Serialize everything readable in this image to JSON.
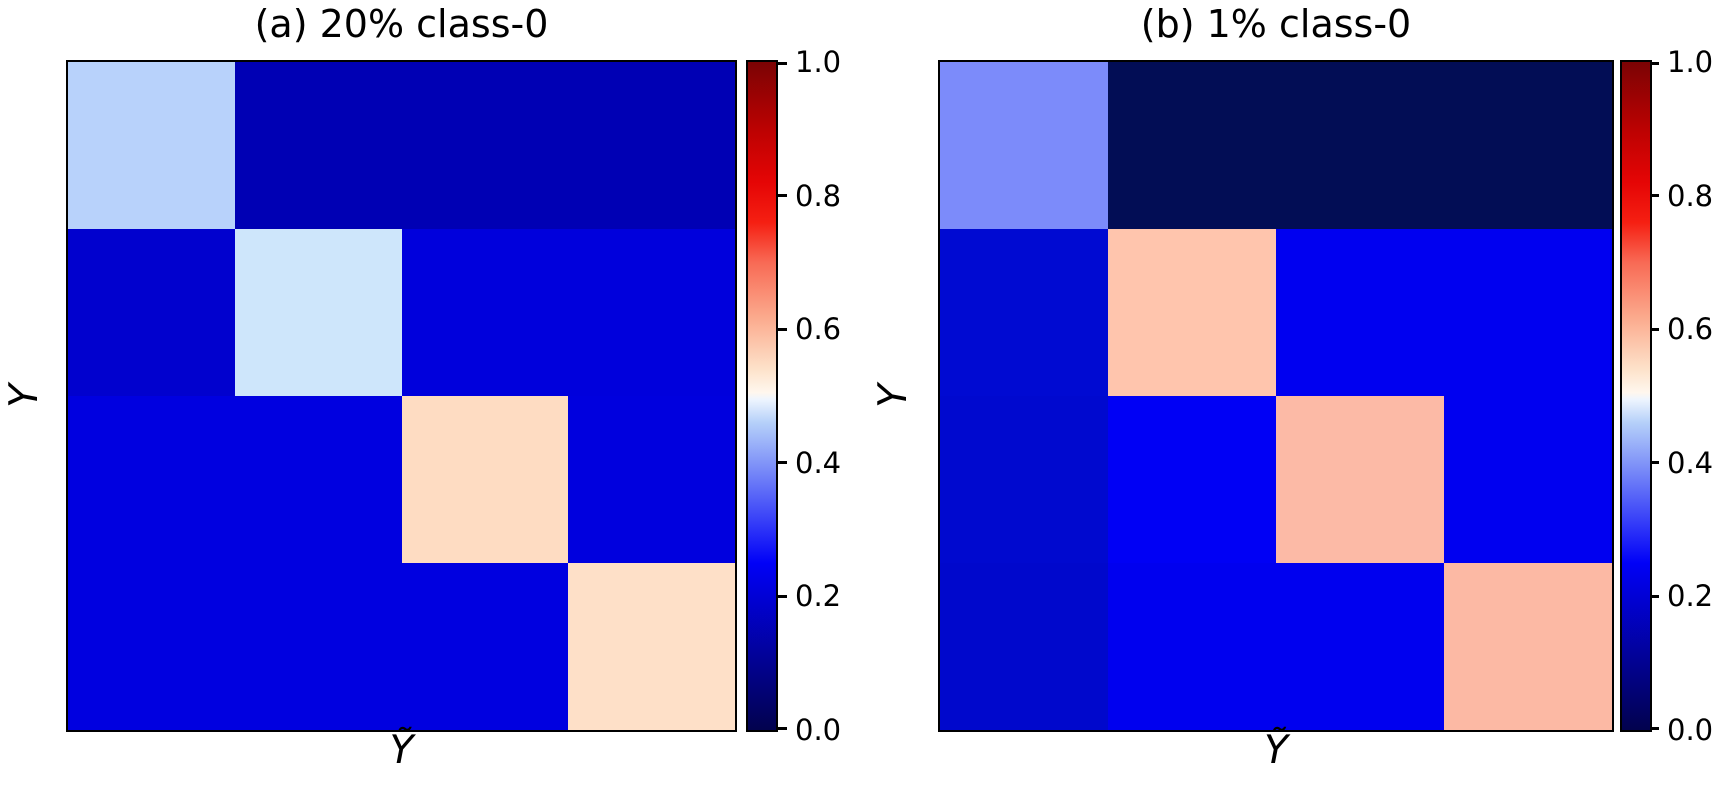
{
  "figure": {
    "background": "#ffffff"
  },
  "chart_data": [
    {
      "type": "heatmap",
      "panel": "left",
      "title": "(a) 20% class-0",
      "xlabel": "Ỹ",
      "ylabel": "Y",
      "n_rows": 4,
      "n_cols": 4,
      "vmin": 0.0,
      "vmax": 1.0,
      "colormap": "seismic-style diverging (dark navy → blue → white → salmon/red → dark red)",
      "grid": "off",
      "axis_tick_labels": "none",
      "values": [
        [
          0.44,
          0.15,
          0.15,
          0.15
        ],
        [
          0.18,
          0.46,
          0.21,
          0.21
        ],
        [
          0.21,
          0.21,
          0.55,
          0.21
        ],
        [
          0.21,
          0.21,
          0.21,
          0.55
        ]
      ],
      "cell_colors": [
        [
          "#b8d2fb",
          "#0000b4",
          "#0000b4",
          "#0000b4"
        ],
        [
          "#0101ce",
          "#cee6fb",
          "#0000dc",
          "#0000dc"
        ],
        [
          "#0000e0",
          "#0000e0",
          "#fedcc2",
          "#0000de"
        ],
        [
          "#0000e0",
          "#0000e0",
          "#0000e0",
          "#fee0c8"
        ]
      ]
    },
    {
      "type": "heatmap",
      "panel": "right",
      "title": "(b) 1% class-0",
      "xlabel": "Ỹ",
      "ylabel": "Y",
      "n_rows": 4,
      "n_cols": 4,
      "vmin": 0.0,
      "vmax": 1.0,
      "colormap": "seismic-style diverging (dark navy → blue → white → salmon/red → dark red)",
      "grid": "off",
      "axis_tick_labels": "none",
      "values": [
        [
          0.38,
          0.02,
          0.02,
          0.02
        ],
        [
          0.19,
          0.57,
          0.23,
          0.23
        ],
        [
          0.19,
          0.24,
          0.58,
          0.23
        ],
        [
          0.18,
          0.23,
          0.23,
          0.58
        ]
      ],
      "cell_colors": [
        [
          "#7c8bfa",
          "#020d55",
          "#020d55",
          "#020d55"
        ],
        [
          "#000ad2",
          "#ffc5ad",
          "#0000f0",
          "#0000f0"
        ],
        [
          "#0009cf",
          "#0000f5",
          "#fcbaa6",
          "#0000f0"
        ],
        [
          "#0008cc",
          "#0000ef",
          "#0000ef",
          "#fcb9a4"
        ]
      ]
    }
  ],
  "colorbar": {
    "ticks": [
      "1.0",
      "0.8",
      "0.6",
      "0.4",
      "0.2",
      "0.0"
    ],
    "tick_values": [
      1.0,
      0.8,
      0.6,
      0.4,
      0.2,
      0.0
    ],
    "top_color": "#7b0304",
    "bottom_color": "#02024e",
    "gradient_stops": [
      [
        "0%",
        "#02024e"
      ],
      [
        "25%",
        "#0101f7"
      ],
      [
        "46%",
        "#b5d0f9"
      ],
      [
        "49.5%",
        "#eef5fe"
      ],
      [
        "50.5%",
        "#fff7ee"
      ],
      [
        "54%",
        "#fde2ca"
      ],
      [
        "62%",
        "#fba88b"
      ],
      [
        "70%",
        "#f86a55"
      ],
      [
        "76%",
        "#f51f12"
      ],
      [
        "82%",
        "#e50505"
      ],
      [
        "90%",
        "#bb0202"
      ],
      [
        "100%",
        "#7b0304"
      ]
    ]
  }
}
